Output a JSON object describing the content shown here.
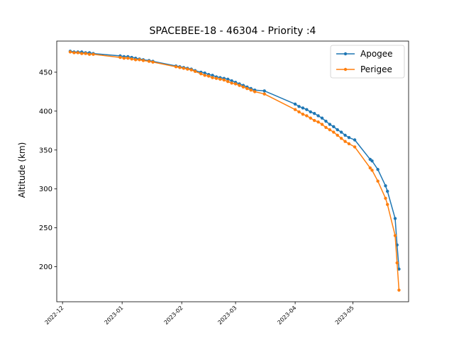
{
  "chart_data": {
    "type": "line",
    "title": "SPACEBEE-18 - 46304 - Priority :4",
    "xlabel": "",
    "ylabel": "Altitude (km)",
    "xlim": [
      "2022-11-28",
      "2023-05-30"
    ],
    "ylim": [
      155,
      490
    ],
    "x_ticks": [
      "2022-12",
      "2023-01",
      "2023-02",
      "2023-03",
      "2023-04",
      "2023-05"
    ],
    "y_ticks": [
      200,
      250,
      300,
      350,
      400,
      450
    ],
    "grid": false,
    "legend_position": "top-right",
    "series": [
      {
        "name": "Apogee",
        "color": "#1f77b4",
        "x": [
          "2022-12-05",
          "2022-12-07",
          "2022-12-09",
          "2022-12-11",
          "2022-12-13",
          "2022-12-15",
          "2022-12-17",
          "2022-12-31",
          "2023-01-02",
          "2023-01-04",
          "2023-01-06",
          "2023-01-08",
          "2023-01-10",
          "2023-01-12",
          "2023-01-15",
          "2023-01-17",
          "2023-01-29",
          "2023-01-31",
          "2023-02-02",
          "2023-02-04",
          "2023-02-06",
          "2023-02-08",
          "2023-02-11",
          "2023-02-13",
          "2023-02-15",
          "2023-02-17",
          "2023-02-19",
          "2023-02-21",
          "2023-02-23",
          "2023-02-25",
          "2023-02-27",
          "2023-03-01",
          "2023-03-03",
          "2023-03-05",
          "2023-03-07",
          "2023-03-09",
          "2023-03-11",
          "2023-03-16",
          "2023-04-01",
          "2023-04-03",
          "2023-04-05",
          "2023-04-07",
          "2023-04-09",
          "2023-04-11",
          "2023-04-13",
          "2023-04-15",
          "2023-04-17",
          "2023-04-19",
          "2023-04-21",
          "2023-04-23",
          "2023-04-25",
          "2023-04-27",
          "2023-04-29",
          "2023-05-02",
          "2023-05-10",
          "2023-05-11",
          "2023-05-14",
          "2023-05-18",
          "2023-05-19",
          "2023-05-23",
          "2023-05-24",
          "2023-05-25"
        ],
        "values": [
          477,
          476,
          476,
          476,
          475,
          475,
          474,
          471,
          470,
          470,
          469,
          468,
          467,
          466,
          465,
          464,
          458,
          457,
          456,
          455,
          454,
          452,
          450,
          449,
          447,
          446,
          444,
          443,
          442,
          441,
          439,
          437,
          435,
          433,
          431,
          429,
          427,
          426,
          409,
          406,
          404,
          402,
          399,
          397,
          394,
          391,
          387,
          383,
          380,
          376,
          373,
          369,
          366,
          363,
          338,
          336,
          325,
          304,
          297,
          262,
          228,
          197
        ]
      },
      {
        "name": "Perigee",
        "color": "#ff7f0e",
        "x": [
          "2022-12-05",
          "2022-12-07",
          "2022-12-09",
          "2022-12-11",
          "2022-12-13",
          "2022-12-15",
          "2022-12-17",
          "2022-12-31",
          "2023-01-02",
          "2023-01-04",
          "2023-01-06",
          "2023-01-08",
          "2023-01-10",
          "2023-01-12",
          "2023-01-15",
          "2023-01-17",
          "2023-01-29",
          "2023-01-31",
          "2023-02-02",
          "2023-02-04",
          "2023-02-06",
          "2023-02-08",
          "2023-02-11",
          "2023-02-13",
          "2023-02-15",
          "2023-02-17",
          "2023-02-19",
          "2023-02-21",
          "2023-02-23",
          "2023-02-25",
          "2023-02-27",
          "2023-03-01",
          "2023-03-03",
          "2023-03-05",
          "2023-03-07",
          "2023-03-09",
          "2023-03-11",
          "2023-03-16",
          "2023-04-01",
          "2023-04-03",
          "2023-04-05",
          "2023-04-07",
          "2023-04-09",
          "2023-04-11",
          "2023-04-13",
          "2023-04-15",
          "2023-04-17",
          "2023-04-19",
          "2023-04-21",
          "2023-04-23",
          "2023-04-25",
          "2023-04-27",
          "2023-04-29",
          "2023-05-02",
          "2023-05-10",
          "2023-05-11",
          "2023-05-14",
          "2023-05-18",
          "2023-05-19",
          "2023-05-23",
          "2023-05-24",
          "2023-05-25"
        ],
        "values": [
          476,
          475,
          475,
          474,
          474,
          473,
          473,
          469,
          468,
          468,
          467,
          466,
          466,
          465,
          464,
          463,
          457,
          456,
          455,
          454,
          453,
          451,
          448,
          446,
          445,
          443,
          442,
          441,
          440,
          438,
          436,
          435,
          433,
          431,
          429,
          427,
          425,
          422,
          402,
          399,
          396,
          394,
          391,
          388,
          386,
          383,
          379,
          376,
          373,
          369,
          365,
          361,
          358,
          354,
          327,
          324,
          310,
          288,
          280,
          240,
          205,
          170
        ]
      }
    ]
  }
}
